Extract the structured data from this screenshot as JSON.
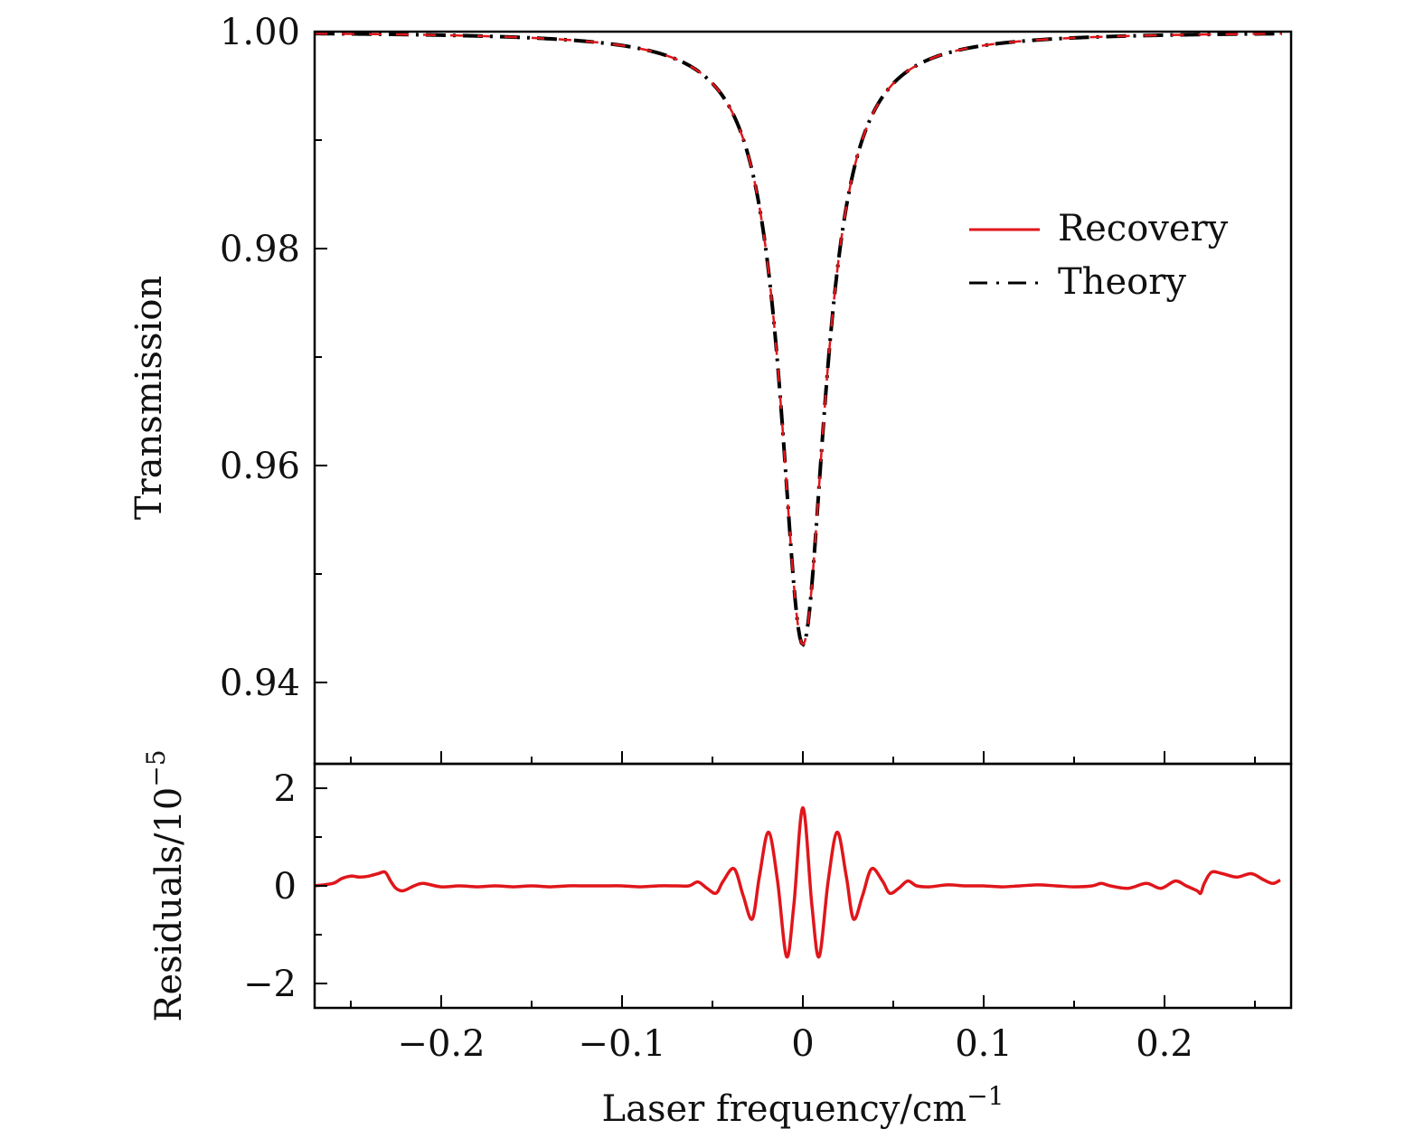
{
  "chart_data": [
    {
      "type": "line",
      "panel": "top",
      "ylabel": "Transmission",
      "xlim": [
        -0.27,
        0.27
      ],
      "ylim": [
        0.9325,
        1.0
      ],
      "yticks": [
        0.94,
        0.96,
        0.98,
        1.0
      ],
      "ytick_labels": [
        "0.94",
        "0.96",
        "0.98",
        "1.00"
      ],
      "yminor_ticks": [
        0.95,
        0.97,
        0.99
      ],
      "xticks": [
        -0.2,
        -0.1,
        0,
        0.1,
        0.2
      ],
      "xminor_ticks": [
        -0.25,
        -0.15,
        -0.05,
        0.05,
        0.15,
        0.25
      ],
      "series": [
        {
          "name": "Recovery",
          "color": "#e0161b",
          "style": "solid",
          "model": "lorentzian",
          "center": 0.0,
          "depth": 0.0565,
          "hwhm": 0.0152,
          "x_range": [
            -0.27,
            0.265
          ]
        },
        {
          "name": "Theory",
          "color": "#000000",
          "style": "dash-dot",
          "model": "lorentzian",
          "center": 0.0,
          "depth": 0.0565,
          "hwhm": 0.0152,
          "x_range": [
            -0.27,
            0.265
          ]
        }
      ],
      "legend": {
        "position": "upper-right",
        "entries": [
          {
            "label": "Recovery",
            "color": "#e0161b",
            "style": "solid"
          },
          {
            "label": "Theory",
            "color": "#000000",
            "style": "dash-dot"
          }
        ]
      }
    },
    {
      "type": "line",
      "panel": "bottom",
      "ylabel": "Residuals/10",
      "ylabel_exponent": "−5",
      "xlabel": "Laser frequency/cm",
      "xlabel_exponent": "−1",
      "xlim": [
        -0.27,
        0.27
      ],
      "ylim": [
        -2.5,
        2.5
      ],
      "yticks": [
        -2,
        0,
        2
      ],
      "ytick_labels": [
        "−2",
        "0",
        "2"
      ],
      "yminor_ticks": [
        -1,
        1
      ],
      "xticks": [
        -0.2,
        -0.1,
        0,
        0.1,
        0.2
      ],
      "xtick_labels": [
        "−0.2",
        "−0.1",
        "0",
        "0.1",
        "0.2"
      ],
      "xminor_ticks": [
        -0.25,
        -0.15,
        -0.05,
        0.05,
        0.15,
        0.25
      ],
      "series": [
        {
          "name": "Residuals",
          "color": "#e0161b",
          "x": [
            -0.27,
            -0.26,
            -0.255,
            -0.25,
            -0.245,
            -0.24,
            -0.235,
            -0.231,
            -0.228,
            -0.225,
            -0.221,
            -0.215,
            -0.21,
            -0.2,
            -0.19,
            -0.18,
            -0.17,
            -0.16,
            -0.15,
            -0.14,
            -0.13,
            -0.12,
            -0.11,
            -0.1,
            -0.09,
            -0.08,
            -0.07,
            -0.063,
            -0.058,
            -0.053,
            -0.048,
            -0.044,
            -0.038,
            -0.033,
            -0.028,
            -0.024,
            -0.019,
            -0.014,
            -0.009,
            -0.005,
            0.0,
            0.005,
            0.009,
            0.014,
            0.019,
            0.024,
            0.028,
            0.033,
            0.038,
            0.044,
            0.048,
            0.053,
            0.058,
            0.063,
            0.07,
            0.08,
            0.09,
            0.1,
            0.11,
            0.12,
            0.13,
            0.14,
            0.15,
            0.16,
            0.165,
            0.17,
            0.18,
            0.19,
            0.198,
            0.206,
            0.212,
            0.218,
            0.22,
            0.222,
            0.226,
            0.232,
            0.24,
            0.248,
            0.255,
            0.26,
            0.264
          ],
          "y": [
            0.0,
            0.05,
            0.15,
            0.2,
            0.18,
            0.2,
            0.25,
            0.28,
            0.1,
            -0.05,
            -0.1,
            0.0,
            0.05,
            -0.02,
            0.0,
            -0.02,
            0.0,
            -0.02,
            0.0,
            -0.02,
            0.0,
            0.0,
            0.0,
            0.0,
            -0.02,
            0.0,
            0.0,
            0.0,
            0.08,
            -0.05,
            -0.15,
            0.1,
            0.35,
            -0.2,
            -0.68,
            0.2,
            1.1,
            0.1,
            -1.45,
            -0.4,
            1.6,
            -0.4,
            -1.45,
            0.1,
            1.1,
            0.2,
            -0.68,
            -0.2,
            0.35,
            0.1,
            -0.15,
            -0.05,
            0.1,
            0.0,
            -0.02,
            0.02,
            0.0,
            0.0,
            -0.02,
            0.0,
            0.02,
            0.0,
            -0.02,
            0.0,
            0.05,
            0.0,
            -0.05,
            0.05,
            -0.05,
            0.1,
            0.0,
            -0.1,
            -0.15,
            0.05,
            0.28,
            0.25,
            0.18,
            0.25,
            0.12,
            0.05,
            0.12
          ]
        }
      ]
    }
  ]
}
